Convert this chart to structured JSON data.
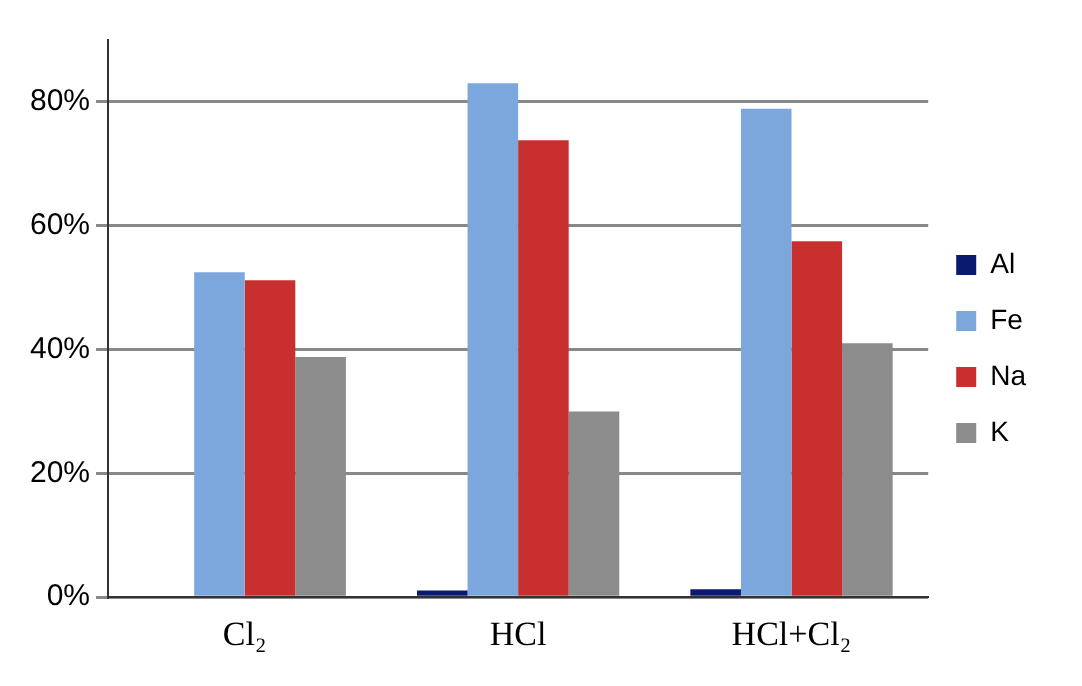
{
  "chart_data": {
    "type": "bar",
    "categories": [
      "Cl₂",
      "HCl",
      "HCl+Cl₂"
    ],
    "series": [
      {
        "name": "Al",
        "color": "#0a1a6e",
        "values": [
          0,
          1.1,
          1.3
        ]
      },
      {
        "name": "Fe",
        "color": "#7ba7dd",
        "values": [
          52.5,
          83.0,
          78.9
        ]
      },
      {
        "name": "Na",
        "color": "#c8302f",
        "values": [
          51.2,
          73.8,
          57.5
        ]
      },
      {
        "name": "K",
        "color": "#8c8c8c",
        "values": [
          38.8,
          30.0,
          41.0
        ]
      }
    ],
    "ylim": [
      0,
      90
    ],
    "yticks": [
      {
        "value": 0,
        "label": "0%"
      },
      {
        "value": 20,
        "label": "20%"
      },
      {
        "value": 40,
        "label": "40%"
      },
      {
        "value": 60,
        "label": "60%"
      },
      {
        "value": 80,
        "label": "80%"
      }
    ],
    "grid": "y",
    "legend": "right"
  }
}
